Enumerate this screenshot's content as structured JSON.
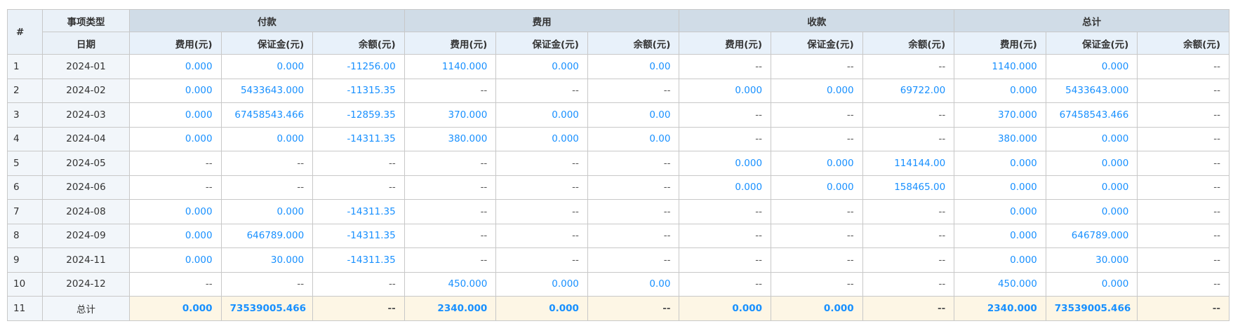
{
  "colors": {
    "accent": "#1890ff",
    "group_header": "#d0dce7",
    "sub_header": "#e8f1fa",
    "total_row": "#fdf6e5"
  },
  "header": {
    "hash": "#",
    "type_label": "事项类型",
    "date_label": "日期",
    "groups": [
      "付款",
      "费用",
      "收款",
      "总计"
    ],
    "sub_columns": [
      "费用(元)",
      "保证金(元)",
      "余额(元)"
    ]
  },
  "rows": [
    {
      "index": "1",
      "date": "2024-01",
      "values": [
        "0.000",
        "0.000",
        "-11256.00",
        "1140.000",
        "0.000",
        "0.00",
        "--",
        "--",
        "--",
        "1140.000",
        "0.000",
        "--"
      ]
    },
    {
      "index": "2",
      "date": "2024-02",
      "values": [
        "0.000",
        "5433643.000",
        "-11315.35",
        "--",
        "--",
        "--",
        "0.000",
        "0.000",
        "69722.00",
        "0.000",
        "5433643.000",
        "--"
      ]
    },
    {
      "index": "3",
      "date": "2024-03",
      "values": [
        "0.000",
        "67458543.466",
        "-12859.35",
        "370.000",
        "0.000",
        "0.00",
        "--",
        "--",
        "--",
        "370.000",
        "67458543.466",
        "--"
      ]
    },
    {
      "index": "4",
      "date": "2024-04",
      "values": [
        "0.000",
        "0.000",
        "-14311.35",
        "380.000",
        "0.000",
        "0.00",
        "--",
        "--",
        "--",
        "380.000",
        "0.000",
        "--"
      ]
    },
    {
      "index": "5",
      "date": "2024-05",
      "values": [
        "--",
        "--",
        "--",
        "--",
        "--",
        "--",
        "0.000",
        "0.000",
        "114144.00",
        "0.000",
        "0.000",
        "--"
      ]
    },
    {
      "index": "6",
      "date": "2024-06",
      "values": [
        "--",
        "--",
        "--",
        "--",
        "--",
        "--",
        "0.000",
        "0.000",
        "158465.00",
        "0.000",
        "0.000",
        "--"
      ]
    },
    {
      "index": "7",
      "date": "2024-08",
      "values": [
        "0.000",
        "0.000",
        "-14311.35",
        "--",
        "--",
        "--",
        "--",
        "--",
        "--",
        "0.000",
        "0.000",
        "--"
      ]
    },
    {
      "index": "8",
      "date": "2024-09",
      "values": [
        "0.000",
        "646789.000",
        "-14311.35",
        "--",
        "--",
        "--",
        "--",
        "--",
        "--",
        "0.000",
        "646789.000",
        "--"
      ]
    },
    {
      "index": "9",
      "date": "2024-11",
      "values": [
        "0.000",
        "30.000",
        "-14311.35",
        "--",
        "--",
        "--",
        "--",
        "--",
        "--",
        "0.000",
        "30.000",
        "--"
      ]
    },
    {
      "index": "10",
      "date": "2024-12",
      "values": [
        "--",
        "--",
        "--",
        "450.000",
        "0.000",
        "0.00",
        "--",
        "--",
        "--",
        "450.000",
        "0.000",
        "--"
      ]
    }
  ],
  "total": {
    "index": "11",
    "label": "总计",
    "values": [
      "0.000",
      "73539005.466",
      "--",
      "2340.000",
      "0.000",
      "--",
      "0.000",
      "0.000",
      "--",
      "2340.000",
      "73539005.466",
      "--"
    ]
  }
}
